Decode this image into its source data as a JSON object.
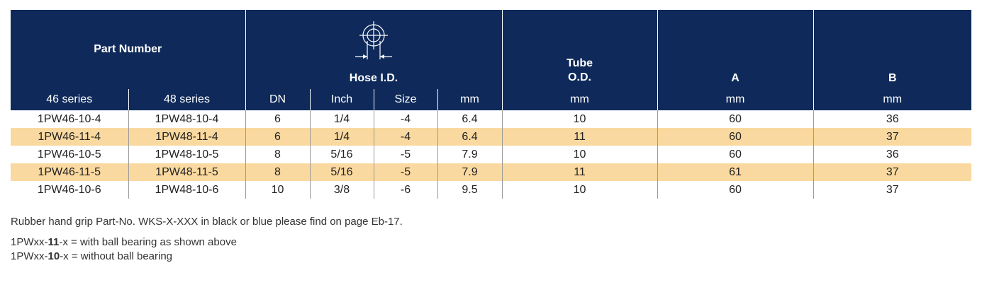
{
  "header": {
    "part_number": "Part Number",
    "hose_id": "Hose I.D.",
    "tube": "Tube",
    "tube_od": "O.D.",
    "a": "A",
    "b": "B"
  },
  "subheader": [
    "46 series",
    "48 series",
    "DN",
    "Inch",
    "Size",
    "mm",
    "mm",
    "mm",
    "mm"
  ],
  "table": {
    "rows": [
      [
        "1PW46-10-4",
        "1PW48-10-4",
        "6",
        "1/4",
        "-4",
        "6.4",
        "10",
        "60",
        "36"
      ],
      [
        "1PW46-11-4",
        "1PW48-11-4",
        "6",
        "1/4",
        "-4",
        "6.4",
        "11",
        "60",
        "37"
      ],
      [
        "1PW46-10-5",
        "1PW48-10-5",
        "8",
        "5/16",
        "-5",
        "7.9",
        "10",
        "60",
        "36"
      ],
      [
        "1PW46-11-5",
        "1PW48-11-5",
        "8",
        "5/16",
        "-5",
        "7.9",
        "11",
        "61",
        "37"
      ],
      [
        "1PW46-10-6",
        "1PW48-10-6",
        "10",
        "3/8",
        "-6",
        "9.5",
        "10",
        "60",
        "37"
      ]
    ]
  },
  "notes": {
    "grip": "Rubber hand grip Part-No. WKS-X-XXX in black or blue please find on page Eb-17.",
    "with_bearing": {
      "prefix": "1PWxx-",
      "bold": "11",
      "suffix": "-x = with ball bearing as shown above"
    },
    "without_bearing": {
      "prefix": "1PWxx-",
      "bold": "10",
      "suffix": "-x = without ball bearing"
    }
  }
}
